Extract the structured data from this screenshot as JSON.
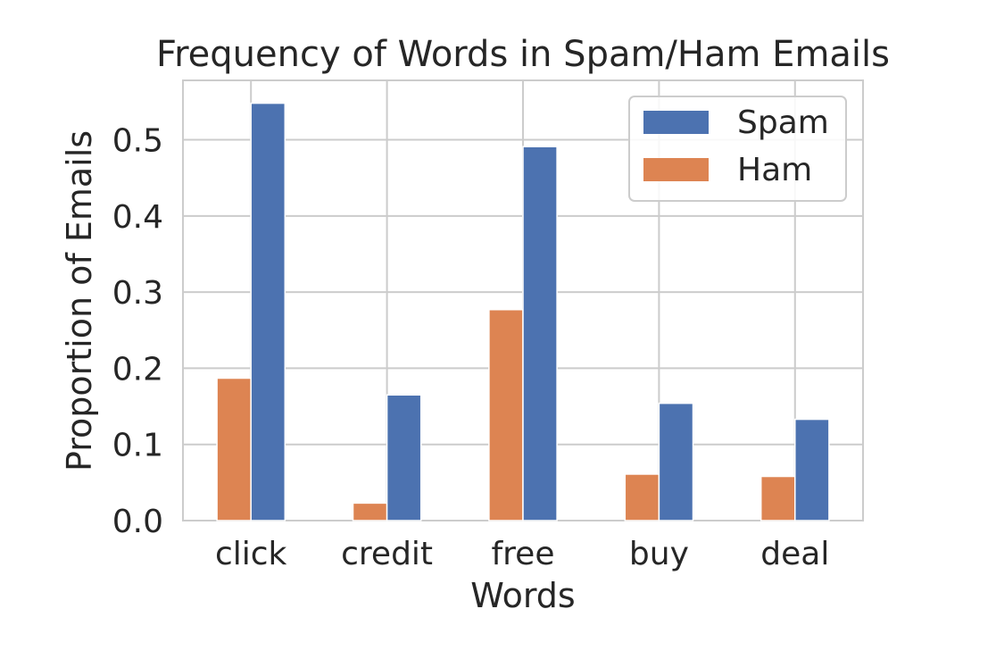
{
  "chart_data": {
    "type": "bar",
    "title": "Frequency of Words in Spam/Ham Emails",
    "xlabel": "Words",
    "ylabel": "Proportion of Emails",
    "categories": [
      "click",
      "credit",
      "free",
      "buy",
      "deal"
    ],
    "series": [
      {
        "name": "Ham",
        "color": "#dd8452",
        "values": [
          0.187,
          0.023,
          0.277,
          0.061,
          0.058
        ]
      },
      {
        "name": "Spam",
        "color": "#4c72b0",
        "values": [
          0.548,
          0.165,
          0.491,
          0.154,
          0.133
        ]
      }
    ],
    "legend_order": [
      "Spam",
      "Ham"
    ],
    "yticks": [
      "0.0",
      "0.1",
      "0.2",
      "0.3",
      "0.4",
      "0.5"
    ],
    "ylim": [
      0,
      0.578
    ],
    "grid": true,
    "legend_position": "top-right"
  }
}
